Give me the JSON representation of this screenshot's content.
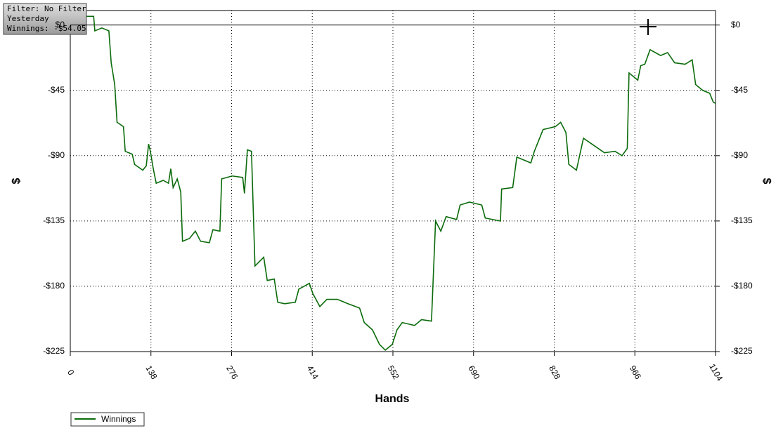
{
  "chart_data": {
    "type": "line",
    "annotations": [
      "Filter: No Filter",
      "Yesterday",
      "Winnings: -$54.05"
    ],
    "x_label": "Hands",
    "y_label": "$",
    "x": [
      28,
      40,
      42,
      54,
      66,
      70,
      76,
      80,
      91,
      94,
      106,
      110,
      124,
      130,
      134,
      137,
      142,
      147,
      159,
      168,
      172,
      176,
      183,
      189,
      192,
      204,
      214,
      223,
      238,
      244,
      256,
      259,
      277,
      295,
      298,
      303,
      310,
      316,
      331,
      337,
      349,
      355,
      367,
      385,
      391,
      409,
      415,
      427,
      439,
      457,
      475,
      495,
      503,
      517,
      529,
      539,
      551,
      559,
      568,
      589,
      601,
      618,
      625,
      634,
      643,
      661,
      667,
      683,
      704,
      710,
      736,
      738,
      757,
      764,
      788,
      794,
      809,
      830,
      839,
      848,
      853,
      866,
      878,
      896,
      914,
      932,
      944,
      953,
      956,
      971,
      976,
      983,
      992,
      1010,
      1022,
      1034,
      1052,
      1064,
      1070,
      1082,
      1094,
      1100,
      1104
    ],
    "series": [
      {
        "name": "Winnings",
        "color": "#0b6b0b",
        "values": [
          6,
          6,
          -4,
          -2,
          -4,
          -26,
          -41,
          -67,
          -70,
          -87,
          -89,
          -96,
          -100,
          -97,
          -82,
          -87,
          -99,
          -109,
          -107,
          -109,
          -99,
          -112,
          -106,
          -115,
          -149,
          -147,
          -142,
          -149,
          -150,
          -141,
          -142,
          -106,
          -104,
          -105,
          -116,
          -86,
          -87,
          -166,
          -160,
          -176,
          -175,
          -191,
          -192,
          -191,
          -182,
          -178,
          -185,
          -194,
          -189,
          -189,
          -192,
          -195,
          -205,
          -210,
          -220,
          -224,
          -220,
          -210,
          -205,
          -207,
          -203,
          -204,
          -135,
          -142,
          -132,
          -134,
          -124,
          -122,
          -124,
          -133,
          -135,
          -113,
          -112,
          -91,
          -95,
          -87,
          -72,
          -70,
          -67,
          -74,
          -96,
          -100,
          -78,
          -83,
          -88,
          -87,
          -90,
          -85,
          -33,
          -38,
          -28,
          -27,
          -17,
          -21,
          -19,
          -26,
          -27,
          -24,
          -41,
          -45,
          -47,
          -53,
          -54
        ]
      }
    ],
    "xlim": [
      0,
      1104
    ],
    "xticks": [
      0,
      138,
      276,
      414,
      552,
      690,
      828,
      966,
      1104
    ],
    "ylim": [
      -225,
      10
    ],
    "yticks": [
      {
        "value": 0,
        "label": "$0"
      },
      {
        "value": -45,
        "label": "-$45"
      },
      {
        "value": -90,
        "label": "-$90"
      },
      {
        "value": -135,
        "label": "-$135"
      },
      {
        "value": -180,
        "label": "-$180"
      },
      {
        "value": -225,
        "label": "-$225"
      }
    ],
    "grid": true,
    "legend": "bottom-left"
  }
}
